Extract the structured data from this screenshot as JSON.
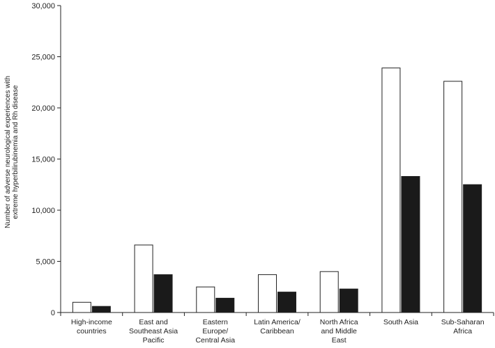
{
  "chart_data": {
    "type": "bar",
    "ylabel_lines": [
      "Number of adverse neurological experiences with",
      "extreme hyperbilirubinemia and Rh disease"
    ],
    "ylim": [
      0,
      30000
    ],
    "yticks": [
      0,
      5000,
      10000,
      15000,
      20000,
      25000,
      30000
    ],
    "ytick_labels": [
      "0",
      "5,000",
      "10,000",
      "15,000",
      "20,000",
      "25,000",
      "30,000"
    ],
    "categories": [
      [
        "High-income",
        "countries"
      ],
      [
        "East and",
        "Southeast Asia",
        "Pacific"
      ],
      [
        "Eastern",
        "Europe/",
        "Central Asia"
      ],
      [
        "Latin America/",
        "Caribbean"
      ],
      [
        "North Africa",
        "and Middle",
        "East"
      ],
      [
        "South Asia"
      ],
      [
        "Sub-Saharan",
        "Africa"
      ]
    ],
    "series": [
      {
        "color": "#ffffff",
        "values": [
          1000,
          6600,
          2500,
          3700,
          4000,
          23900,
          22600
        ]
      },
      {
        "color": "#1a1a1a",
        "values": [
          600,
          3700,
          1400,
          2000,
          2300,
          13300,
          12500
        ]
      }
    ],
    "grid": false,
    "legend": "none"
  }
}
